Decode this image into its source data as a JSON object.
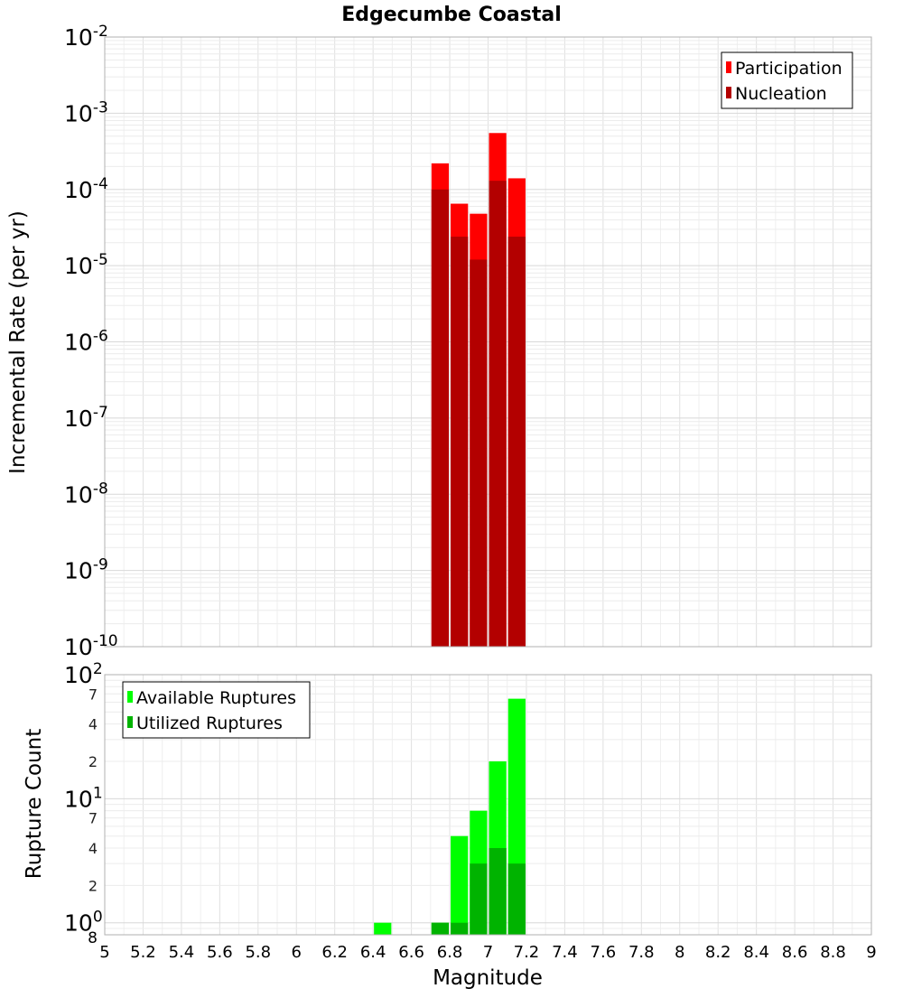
{
  "chart_data": [
    {
      "type": "bar",
      "title": "Edgecumbe Coastal",
      "ylabel": "Incremental Rate (per yr)",
      "yscale": "log",
      "ylim": [
        1e-10,
        0.01
      ],
      "y_tick_labels": [
        {
          "base": "10",
          "exp": "-10"
        },
        {
          "base": "10",
          "exp": "-9"
        },
        {
          "base": "10",
          "exp": "-8"
        },
        {
          "base": "10",
          "exp": "-7"
        },
        {
          "base": "10",
          "exp": "-6"
        },
        {
          "base": "10",
          "exp": "-5"
        },
        {
          "base": "10",
          "exp": "-4"
        },
        {
          "base": "10",
          "exp": "-3"
        },
        {
          "base": "10",
          "exp": "-2"
        }
      ],
      "legend_position": "top-right",
      "bar_width": 0.1,
      "x": [
        6.75,
        6.85,
        6.95,
        7.05,
        7.15
      ],
      "series": [
        {
          "name": "Participation",
          "color": "#ff0000",
          "values": [
            0.00022,
            6.5e-05,
            4.8e-05,
            0.00055,
            0.00014
          ]
        },
        {
          "name": "Nucleation",
          "color": "#b30000",
          "values": [
            0.0001,
            2.4e-05,
            1.2e-05,
            0.00013,
            2.4e-05
          ]
        }
      ],
      "grid": true
    },
    {
      "type": "bar",
      "ylabel": "Rupture Count",
      "xlabel": "Magnitude",
      "yscale": "log",
      "ylim": [
        0.8,
        100
      ],
      "y_major_tick_labels": [
        {
          "base": "10",
          "exp": "0"
        },
        {
          "base": "10",
          "exp": "1"
        },
        {
          "base": "10",
          "exp": "2"
        }
      ],
      "y_minor_tick_labels": [
        {
          "value": 2,
          "label": "2"
        },
        {
          "value": 4,
          "label": "4"
        },
        {
          "value": 7,
          "label": "7"
        },
        {
          "value": 20,
          "label": "2"
        },
        {
          "value": 40,
          "label": "4"
        },
        {
          "value": 70,
          "label": "7"
        }
      ],
      "y_bottom_label": "8",
      "legend_position": "top-left",
      "bar_width": 0.1,
      "x": [
        6.45,
        6.75,
        6.85,
        6.95,
        7.05,
        7.15
      ],
      "series": [
        {
          "name": "Available Ruptures",
          "color": "#00ff00",
          "values": [
            1,
            1,
            5,
            8,
            20,
            64
          ]
        },
        {
          "name": "Utilized Ruptures",
          "color": "#00b300",
          "values": [
            0,
            1,
            1,
            3,
            4,
            3
          ]
        }
      ],
      "grid": true
    }
  ],
  "x_axis": {
    "xlim": [
      5,
      9
    ],
    "tick_labels": [
      "5",
      "5.2",
      "5.4",
      "5.6",
      "5.8",
      "6",
      "6.2",
      "6.4",
      "6.6",
      "6.8",
      "7",
      "7.2",
      "7.4",
      "7.6",
      "7.8",
      "8",
      "8.2",
      "8.4",
      "8.6",
      "8.8",
      "9"
    ]
  }
}
